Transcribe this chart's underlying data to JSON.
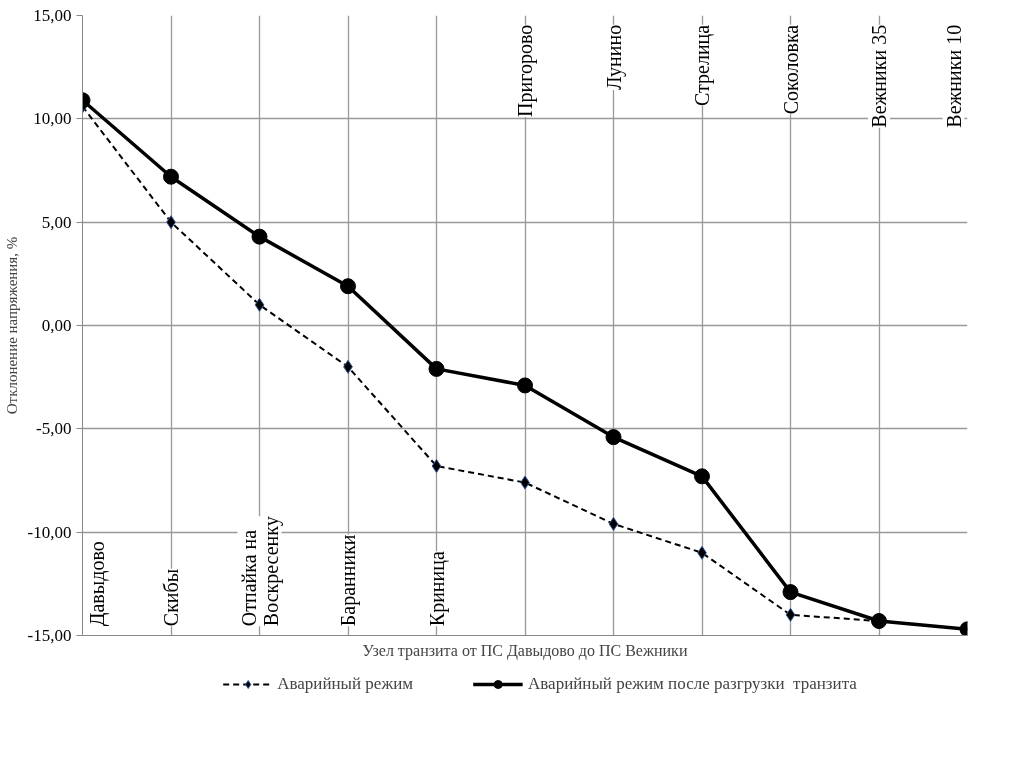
{
  "chart_data": {
    "type": "line",
    "xlabel": "Узел транзита от ПС Давыдово до ПС Вежники",
    "ylabel": "Отклонение напряжения, %",
    "categories": [
      "Давыдово",
      "Скибы",
      "Отпайка на\nВоскресенку",
      "Баранники",
      "Криница",
      "Пригорово",
      "Лунино",
      "Стрелица",
      "Соколовка",
      "Вежники 35",
      "Вежники 10"
    ],
    "series": [
      {
        "name": "Аварийный режим",
        "color": "#000000",
        "marker": "diamond",
        "line_style": "dashed",
        "values": [
          10.6,
          5.0,
          1.0,
          -2.0,
          -6.8,
          -7.6,
          -9.6,
          -11.0,
          -14.0,
          -14.3,
          null
        ]
      },
      {
        "name": "Аварийный режим после разгрузки  транзита",
        "color": "#000000",
        "marker": "circle",
        "line_style": "solid",
        "values": [
          10.9,
          7.2,
          4.3,
          1.9,
          -2.1,
          -2.9,
          -5.4,
          -7.3,
          -12.9,
          -14.3,
          -14.7
        ]
      }
    ],
    "ylim": [
      -15,
      15
    ],
    "yticks": [
      {
        "value": -15,
        "label": "-15,00"
      },
      {
        "value": -10,
        "label": "-10,00"
      },
      {
        "value": -5,
        "label": "-5,00"
      },
      {
        "value": 0,
        "label": "0,00"
      },
      {
        "value": 5,
        "label": "5,00"
      },
      {
        "value": 10,
        "label": "10,00"
      },
      {
        "value": 15,
        "label": "15,00"
      }
    ],
    "grid": true,
    "legend": "bottom"
  }
}
